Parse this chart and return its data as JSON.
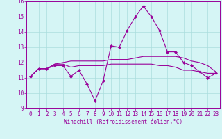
{
  "xlabel": "Windchill (Refroidissement éolien,°C)",
  "hours": [
    0,
    1,
    2,
    3,
    4,
    5,
    6,
    7,
    8,
    9,
    10,
    11,
    12,
    13,
    14,
    15,
    16,
    17,
    18,
    19,
    20,
    21,
    22,
    23
  ],
  "line1": [
    11.1,
    11.6,
    11.6,
    11.8,
    11.8,
    11.1,
    11.5,
    10.6,
    9.5,
    10.8,
    13.1,
    13.0,
    14.1,
    15.0,
    15.7,
    15.0,
    14.1,
    12.7,
    12.7,
    12.0,
    11.8,
    11.4,
    11.0,
    11.3
  ],
  "line2": [
    11.1,
    11.6,
    11.6,
    11.9,
    11.9,
    11.7,
    11.8,
    11.8,
    11.8,
    11.8,
    11.9,
    11.9,
    11.9,
    11.9,
    11.9,
    11.9,
    11.8,
    11.8,
    11.7,
    11.5,
    11.5,
    11.4,
    11.3,
    11.3
  ],
  "line3": [
    11.1,
    11.6,
    11.6,
    11.9,
    12.0,
    12.1,
    12.1,
    12.1,
    12.1,
    12.1,
    12.2,
    12.2,
    12.2,
    12.3,
    12.4,
    12.4,
    12.4,
    12.4,
    12.4,
    12.3,
    12.1,
    12.0,
    11.8,
    11.4
  ],
  "line_color": "#990099",
  "bg_color": "#d5f5f5",
  "grid_color": "#aadddd",
  "ylim": [
    9,
    16
  ],
  "yticks": [
    9,
    10,
    11,
    12,
    13,
    14,
    15,
    16
  ],
  "xticks": [
    0,
    1,
    2,
    3,
    4,
    5,
    6,
    7,
    8,
    9,
    10,
    11,
    12,
    13,
    14,
    15,
    16,
    17,
    18,
    19,
    20,
    21,
    22,
    23
  ],
  "marker": "D",
  "markersize": 2.0,
  "linewidth": 0.8,
  "tick_fontsize": 5.5,
  "xlabel_fontsize": 5.5
}
